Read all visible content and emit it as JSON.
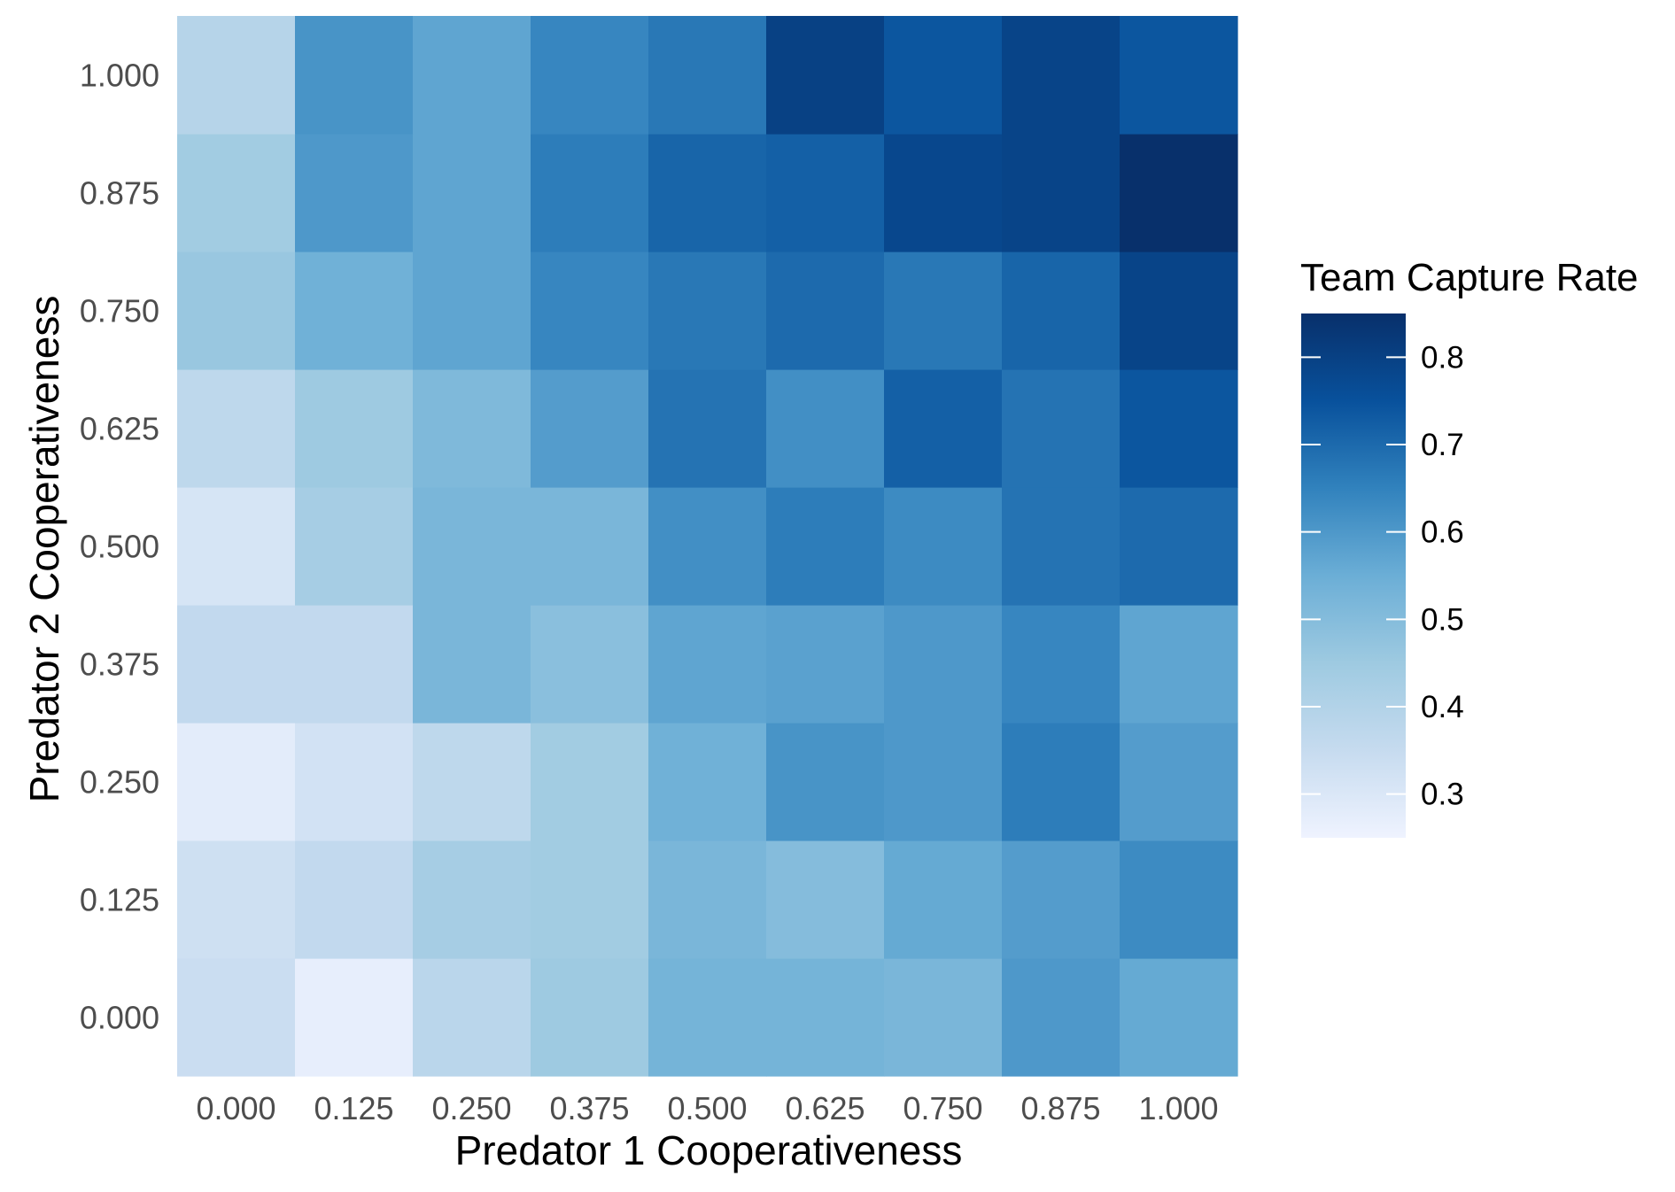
{
  "chart_data": {
    "type": "heatmap",
    "xlabel": "Predator 1 Cooperativeness",
    "ylabel": "Predator 2 Cooperativeness",
    "x_categories": [
      "0.000",
      "0.125",
      "0.250",
      "0.375",
      "0.500",
      "0.625",
      "0.750",
      "0.875",
      "1.000"
    ],
    "y_categories": [
      "0.000",
      "0.125",
      "0.250",
      "0.375",
      "0.500",
      "0.625",
      "0.750",
      "0.875",
      "1.000"
    ],
    "values": [
      [
        0.34,
        0.27,
        0.38,
        0.45,
        0.53,
        0.53,
        0.52,
        0.6,
        0.56
      ],
      [
        0.33,
        0.36,
        0.43,
        0.44,
        0.52,
        0.5,
        0.56,
        0.59,
        0.63
      ],
      [
        0.28,
        0.32,
        0.37,
        0.44,
        0.54,
        0.61,
        0.6,
        0.66,
        0.59
      ],
      [
        0.36,
        0.36,
        0.52,
        0.49,
        0.57,
        0.58,
        0.6,
        0.64,
        0.57
      ],
      [
        0.31,
        0.43,
        0.52,
        0.52,
        0.62,
        0.66,
        0.63,
        0.68,
        0.7
      ],
      [
        0.37,
        0.45,
        0.51,
        0.59,
        0.68,
        0.62,
        0.72,
        0.68,
        0.74
      ],
      [
        0.46,
        0.54,
        0.57,
        0.64,
        0.67,
        0.7,
        0.67,
        0.71,
        0.79
      ],
      [
        0.44,
        0.6,
        0.57,
        0.66,
        0.71,
        0.72,
        0.78,
        0.79,
        0.85
      ],
      [
        0.39,
        0.61,
        0.57,
        0.64,
        0.67,
        0.8,
        0.74,
        0.79,
        0.74
      ]
    ],
    "value_range": [
      0.25,
      0.85
    ],
    "legend": {
      "title": "Team Capture Rate",
      "ticks": [
        "0.3",
        "0.4",
        "0.5",
        "0.6",
        "0.7",
        "0.8"
      ],
      "tick_values": [
        0.3,
        0.4,
        0.5,
        0.6,
        0.7,
        0.8
      ],
      "position": "right"
    },
    "color_scale": [
      "#eff3ff",
      "#c6dbef",
      "#9ecae1",
      "#6baed6",
      "#3182bd",
      "#08519c",
      "#08306b"
    ]
  }
}
